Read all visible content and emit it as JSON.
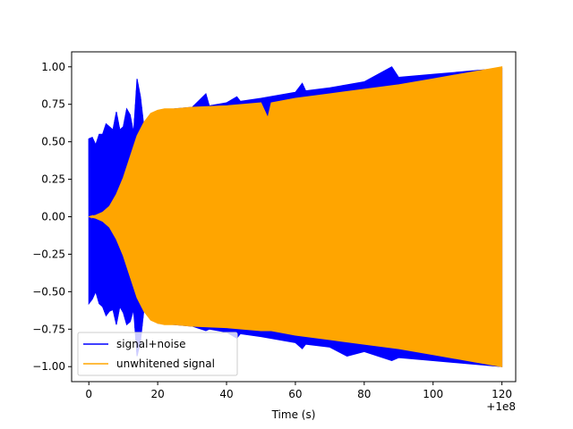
{
  "chart_data": {
    "type": "line",
    "title": "",
    "xlabel": "Time (s)",
    "ylabel": "",
    "x_offset_label": "+1e8",
    "xlim": [
      -5,
      124
    ],
    "ylim": [
      -1.1,
      1.1
    ],
    "xticks": [
      0,
      20,
      40,
      60,
      80,
      100,
      120
    ],
    "xtick_labels": [
      "0",
      "20",
      "40",
      "60",
      "80",
      "100",
      "120"
    ],
    "yticks": [
      -1.0,
      -0.75,
      -0.5,
      -0.25,
      0.0,
      0.25,
      0.5,
      0.75,
      1.0
    ],
    "ytick_labels": [
      "−1.00",
      "−0.75",
      "−0.50",
      "−0.25",
      "0.00",
      "0.25",
      "0.50",
      "0.75",
      "1.00"
    ],
    "grid": false,
    "legend_position": "lower-left",
    "series": [
      {
        "name": "signal+noise",
        "color": "#0000ff",
        "envelope": {
          "x": [
            0,
            1,
            2,
            3,
            4,
            5,
            6,
            7,
            8,
            9,
            10,
            11,
            12,
            13,
            14,
            15,
            16,
            17,
            18,
            19,
            20,
            25,
            30,
            34,
            35,
            40,
            43,
            44,
            50,
            55,
            60,
            62,
            63,
            70,
            75,
            80,
            88,
            90,
            100,
            110,
            120
          ],
          "upper": [
            0.52,
            0.53,
            0.48,
            0.55,
            0.55,
            0.62,
            0.6,
            0.58,
            0.7,
            0.58,
            0.6,
            0.72,
            0.68,
            0.56,
            0.92,
            0.8,
            0.6,
            0.6,
            0.62,
            0.66,
            0.7,
            0.72,
            0.73,
            0.82,
            0.74,
            0.76,
            0.8,
            0.77,
            0.79,
            0.81,
            0.83,
            0.89,
            0.84,
            0.86,
            0.88,
            0.9,
            1.0,
            0.93,
            0.95,
            0.97,
            0.99
          ],
          "lower": [
            -0.58,
            -0.55,
            -0.5,
            -0.58,
            -0.6,
            -0.66,
            -0.63,
            -0.62,
            -0.72,
            -0.6,
            -0.64,
            -0.72,
            -0.7,
            -0.62,
            -0.93,
            -0.83,
            -0.62,
            -0.62,
            -0.64,
            -0.68,
            -0.71,
            -0.72,
            -0.73,
            -0.76,
            -0.75,
            -0.77,
            -0.81,
            -0.78,
            -0.8,
            -0.82,
            -0.84,
            -0.88,
            -0.85,
            -0.87,
            -0.93,
            -0.9,
            -0.96,
            -0.94,
            -0.96,
            -0.98,
            -1.0
          ]
        }
      },
      {
        "name": "unwhitened signal",
        "color": "#ffa500",
        "envelope": {
          "x": [
            0,
            2,
            4,
            6,
            8,
            10,
            12,
            14,
            16,
            18,
            20,
            22,
            25,
            30,
            40,
            50,
            52,
            53,
            60,
            70,
            80,
            90,
            100,
            110,
            120
          ],
          "upper": [
            0.0,
            0.01,
            0.03,
            0.07,
            0.15,
            0.26,
            0.4,
            0.54,
            0.63,
            0.69,
            0.71,
            0.72,
            0.72,
            0.73,
            0.74,
            0.76,
            0.66,
            0.76,
            0.79,
            0.82,
            0.85,
            0.88,
            0.92,
            0.96,
            1.0
          ],
          "lower": [
            0.0,
            -0.01,
            -0.03,
            -0.07,
            -0.15,
            -0.26,
            -0.4,
            -0.54,
            -0.63,
            -0.69,
            -0.71,
            -0.72,
            -0.72,
            -0.73,
            -0.74,
            -0.76,
            -0.76,
            -0.76,
            -0.79,
            -0.82,
            -0.85,
            -0.88,
            -0.92,
            -0.96,
            -1.0
          ]
        }
      }
    ]
  }
}
